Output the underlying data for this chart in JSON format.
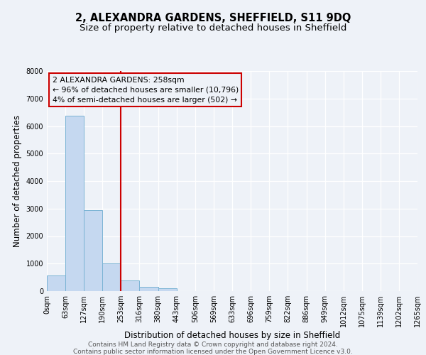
{
  "title": "2, ALEXANDRA GARDENS, SHEFFIELD, S11 9DQ",
  "subtitle": "Size of property relative to detached houses in Sheffield",
  "xlabel": "Distribution of detached houses by size in Sheffield",
  "ylabel": "Number of detached properties",
  "bar_color": "#c5d8f0",
  "bar_edgecolor": "#7ab3d4",
  "annotation_box_color": "#cc0000",
  "vline_color": "#cc0000",
  "vline_x": 253,
  "annotation_line1": "2 ALEXANDRA GARDENS: 258sqm",
  "annotation_line2": "← 96% of detached houses are smaller (10,796)",
  "annotation_line3": "4% of semi-detached houses are larger (502) →",
  "bin_edges": [
    0,
    63,
    127,
    190,
    253,
    316,
    380,
    443,
    506,
    569,
    633,
    696,
    759,
    822,
    886,
    949,
    1012,
    1075,
    1139,
    1202,
    1265
  ],
  "bin_counts": [
    570,
    6380,
    2950,
    1000,
    390,
    165,
    100,
    0,
    0,
    0,
    0,
    0,
    0,
    0,
    0,
    0,
    0,
    0,
    0,
    0
  ],
  "ylim": [
    0,
    8000
  ],
  "yticks": [
    0,
    1000,
    2000,
    3000,
    4000,
    5000,
    6000,
    7000,
    8000
  ],
  "footer_line1": "Contains HM Land Registry data © Crown copyright and database right 2024.",
  "footer_line2": "Contains public sector information licensed under the Open Government Licence v3.0.",
  "background_color": "#eef2f8",
  "grid_color": "#ffffff",
  "title_fontsize": 10.5,
  "subtitle_fontsize": 9.5,
  "label_fontsize": 8.5,
  "tick_fontsize": 7,
  "annot_fontsize": 7.8,
  "footer_fontsize": 6.5
}
